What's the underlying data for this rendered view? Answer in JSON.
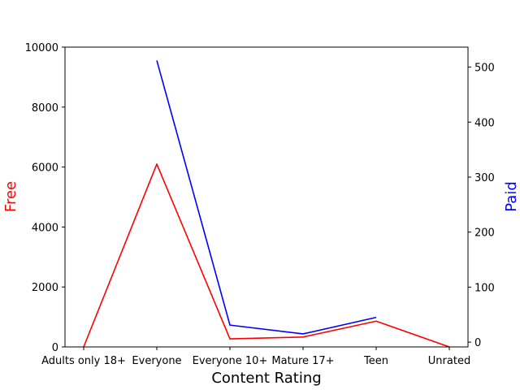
{
  "chart_data": {
    "type": "line",
    "title": "",
    "xlabel": "Content Rating",
    "categories": [
      "Adults only 18+",
      "Everyone",
      "Everyone 10+",
      "Mature 17+",
      "Teen",
      "Unrated"
    ],
    "y_left": {
      "label": "Free",
      "label_color": "#ff0000",
      "ylim": [
        0,
        10000
      ],
      "ticks": [
        0,
        2000,
        4000,
        6000,
        8000,
        10000
      ]
    },
    "y_right": {
      "label": "Paid",
      "label_color": "#0000ff",
      "ylim": [
        -8.7,
        536.3
      ],
      "ticks": [
        0,
        100,
        200,
        300,
        400,
        500
      ]
    },
    "grid": false,
    "series": [
      {
        "name": "Free",
        "axis": "left",
        "color": "#ff0000",
        "values": [
          3,
          6100,
          270,
          330,
          860,
          1
        ]
      },
      {
        "name": "Paid",
        "axis": "right",
        "color": "#0000ff",
        "values": [
          null,
          512,
          31,
          15,
          45,
          null
        ]
      }
    ]
  }
}
